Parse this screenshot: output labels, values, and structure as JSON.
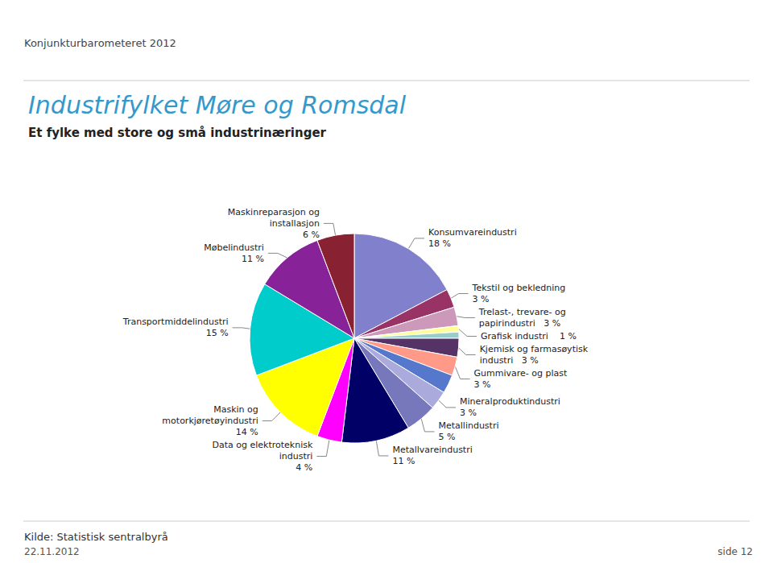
{
  "chart_data": {
    "type": "pie",
    "title": "Industrifylket Møre og Romsdal",
    "subtitle": "Et fylke med store og små industrinæringer",
    "annotations": [
      "Konjunkturbarometeret 2012",
      "Kilde: Statistisk sentralbyrå",
      "22.11.2012",
      "side 12"
    ],
    "categories": [
      "Konsumvareindustri\n18 %",
      "Tekstil og bekledning\n3 %",
      "Trelast-, trevare- og\npapirindustri   3 %",
      "Grafisk industri    1 %",
      null,
      "Kjemisk og farmasøytisk\nindustri   3 %",
      "Gummivare- og plast\n3 %",
      null,
      "Mineralproduktindustri\n3 %",
      "Metallindustri\n5 %",
      "Metallvareindustri\n11 %",
      "Data og elektroteknisk\nindustri\n4 %",
      "Maskin og\nmotorkjøretøyindustri\n14 %",
      "Transportmiddelindustri\n15 %",
      "Møbelindustri\n11 %",
      "Maskinreparasjon og\ninstallasjon\n6 %"
    ],
    "values": [
      18,
      3,
      3,
      1,
      1,
      3,
      3,
      3,
      3,
      5,
      11,
      4,
      14,
      15,
      11,
      6
    ],
    "colors": [
      "#8080CC",
      "#993366",
      "#CC99BB",
      "#FFFF99",
      "#99CCCC",
      "#553366",
      "#FF9988",
      "#5577CC",
      "#AAAADD",
      "#7777BB",
      "#000066",
      "#FF00FF",
      "#FFFF00",
      "#00CCCC",
      "#882299",
      "#882233"
    ]
  }
}
